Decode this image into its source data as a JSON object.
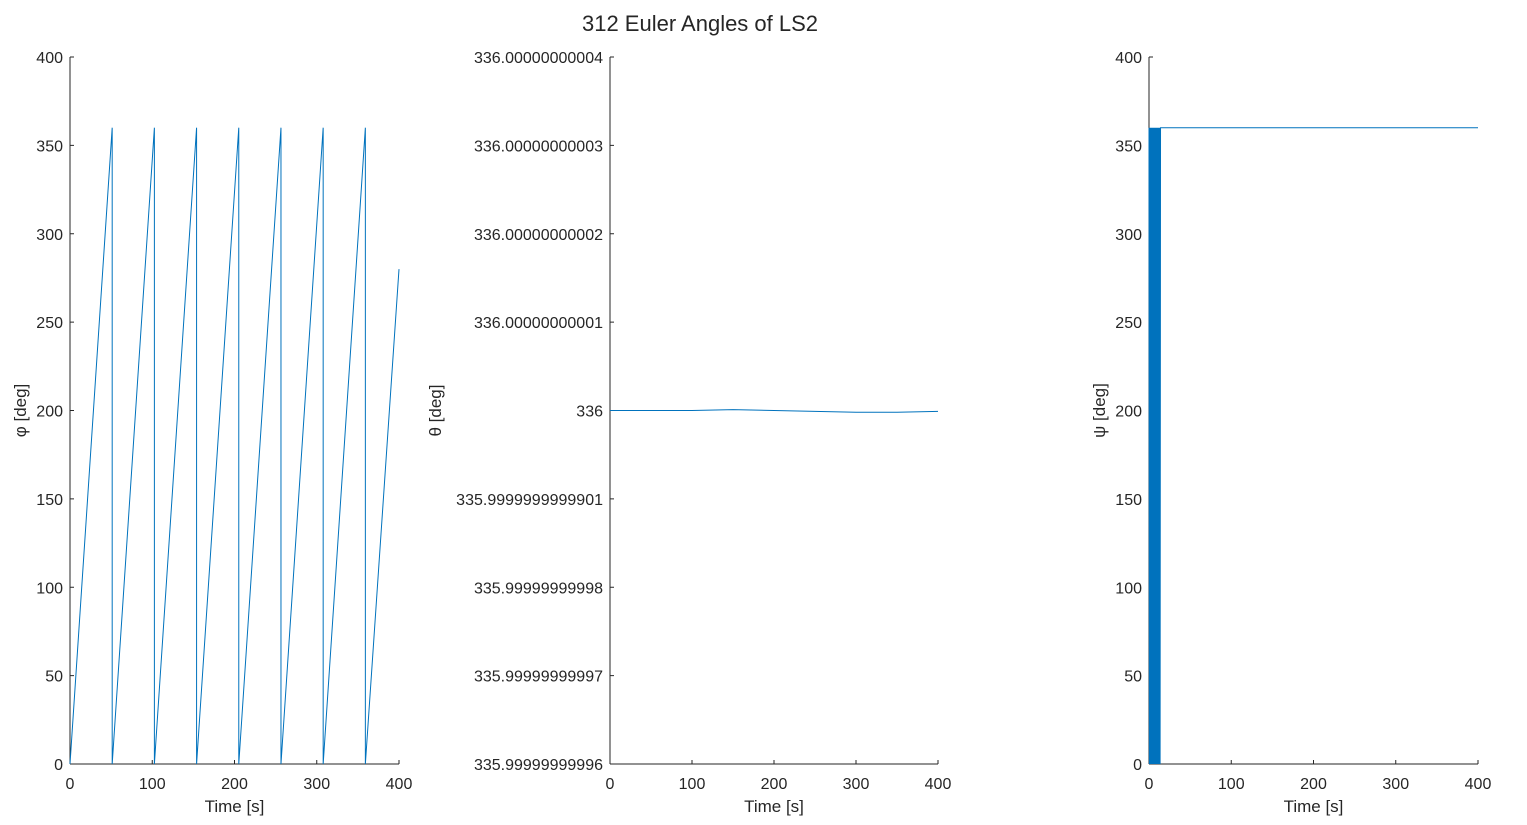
{
  "figure_title": "312 Euler Angles of LS2",
  "colors": {
    "line": "#0072BD",
    "axes": "#262626",
    "background": "#ffffff"
  },
  "chart_data": [
    {
      "type": "line",
      "title": "",
      "xlabel": "Time [s]",
      "ylabel": "φ [deg]",
      "xlim": [
        0,
        400
      ],
      "ylim": [
        0,
        400
      ],
      "xticks": [
        0,
        100,
        200,
        300,
        400
      ],
      "xtick_labels": [
        "0",
        "100",
        "200",
        "300",
        "400"
      ],
      "yticks": [
        0,
        50,
        100,
        150,
        200,
        250,
        300,
        350,
        400
      ],
      "ytick_labels": [
        "0",
        "50",
        "100",
        "150",
        "200",
        "250",
        "300",
        "350",
        "400"
      ],
      "grid": false,
      "series": [
        {
          "color": "#0072BD",
          "x": [
            0,
            51.3,
            51.3,
            102.6,
            102.6,
            153.9,
            153.9,
            205.2,
            205.2,
            256.5,
            256.5,
            307.8,
            307.8,
            359.1,
            359.1,
            400
          ],
          "y": [
            0,
            360,
            0,
            360,
            0,
            360,
            0,
            360,
            0,
            360,
            0,
            360,
            0,
            360,
            0,
            280
          ]
        }
      ]
    },
    {
      "type": "line",
      "title": "",
      "xlabel": "Time [s]",
      "ylabel": "θ [deg]",
      "xlim": [
        0,
        400
      ],
      "ylim": [
        -4,
        4
      ],
      "y_offset_note": "",
      "xticks": [
        0,
        100,
        200,
        300,
        400
      ],
      "xtick_labels": [
        "0",
        "100",
        "200",
        "300",
        "400"
      ],
      "yticks": [
        -4,
        -3,
        -2,
        -1,
        0,
        1,
        2,
        3,
        4
      ],
      "ytick_labels": [
        "335.99999999996",
        "335.99999999997",
        "335.99999999998",
        "335.9999999999901",
        "336",
        "336.00000000001",
        "336.00000000002",
        "336.00000000003",
        "336.00000000004"
      ],
      "grid": false,
      "series": [
        {
          "color": "#0072BD",
          "x": [
            0,
            50,
            100,
            150,
            200,
            250,
            300,
            350,
            400
          ],
          "y": [
            0,
            0.0,
            0.0,
            0.01,
            0.0,
            -0.01,
            -0.02,
            -0.02,
            -0.01
          ]
        }
      ]
    },
    {
      "type": "line",
      "title": "",
      "xlabel": "Time [s]",
      "ylabel": "ψ [deg]",
      "xlim": [
        0,
        400
      ],
      "ylim": [
        0,
        400
      ],
      "xticks": [
        0,
        100,
        200,
        300,
        400
      ],
      "xtick_labels": [
        "0",
        "100",
        "200",
        "300",
        "400"
      ],
      "yticks": [
        0,
        50,
        100,
        150,
        200,
        250,
        300,
        350,
        400
      ],
      "ytick_labels": [
        "0",
        "50",
        "100",
        "150",
        "200",
        "250",
        "300",
        "350",
        "400"
      ],
      "grid": false,
      "series": [
        {
          "color": "#0072BD",
          "x": [
            0,
            0.5,
            1,
            1.5,
            2,
            2.5,
            3,
            3.5,
            4,
            4.5,
            5,
            5.5,
            6,
            6.5,
            7,
            7.5,
            8,
            8.5,
            9,
            9.5,
            10,
            10.5,
            11,
            11.5,
            12,
            12.5,
            13,
            13.5,
            14,
            14.5,
            400
          ],
          "y": [
            360,
            0,
            360,
            0,
            360,
            0,
            360,
            0,
            360,
            0,
            360,
            0,
            360,
            0,
            360,
            0,
            360,
            0,
            360,
            0,
            360,
            0,
            360,
            0,
            360,
            0,
            360,
            0,
            360,
            360,
            360
          ]
        }
      ]
    }
  ]
}
